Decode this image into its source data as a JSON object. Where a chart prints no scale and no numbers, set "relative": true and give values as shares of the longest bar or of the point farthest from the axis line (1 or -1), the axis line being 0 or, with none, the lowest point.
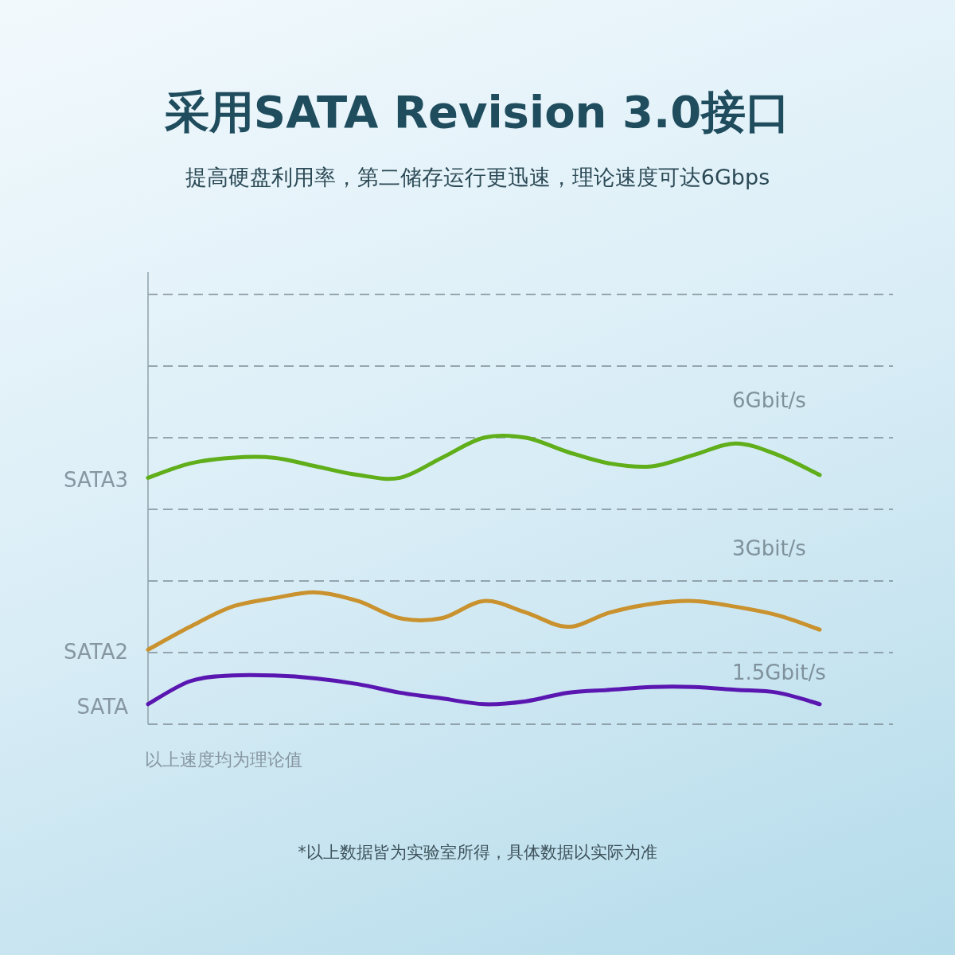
{
  "chart_data": {
    "type": "line",
    "title": "采用SATA Revision 3.0接口",
    "subtitle": "提高硬盘利用率，第二储存运行更迅速，理论速度可达6Gbps",
    "relative": true,
    "grid": "y",
    "marker": "none",
    "line_style": "solid",
    "categories": [
      null,
      null,
      null,
      null,
      null,
      null,
      null,
      null,
      null,
      null,
      null,
      null,
      null,
      null,
      null,
      null,
      null
    ],
    "series": [
      {
        "name": "SATA3",
        "color": "#5fae1a",
        "values": [
          0.86,
          0.91,
          0.93,
          0.93,
          0.9,
          0.87,
          0.86,
          0.93,
          1,
          1,
          0.95,
          0.91,
          0.9,
          0.94,
          0.98,
          0.94,
          0.87
        ]
      },
      {
        "name": "SATA2",
        "color": "#c9922e",
        "values": [
          0.26,
          0.34,
          0.41,
          0.44,
          0.46,
          0.43,
          0.37,
          0.37,
          0.43,
          0.39,
          0.34,
          0.39,
          0.42,
          0.43,
          0.41,
          0.38,
          0.33
        ]
      },
      {
        "name": "SATA",
        "color": "#5a16b0",
        "values": [
          0.07,
          0.15,
          0.17,
          0.17,
          0.16,
          0.14,
          0.11,
          0.09,
          0.07,
          0.08,
          0.11,
          0.12,
          0.13,
          0.13,
          0.12,
          0.11,
          0.07
        ]
      }
    ],
    "annotations": [
      "6Gbit/s",
      "3Gbit/s",
      "1.5Gbit/s",
      "以上速度均为理论值",
      "*以上数据皆为实验室所得，具体数据以实际为准"
    ]
  }
}
